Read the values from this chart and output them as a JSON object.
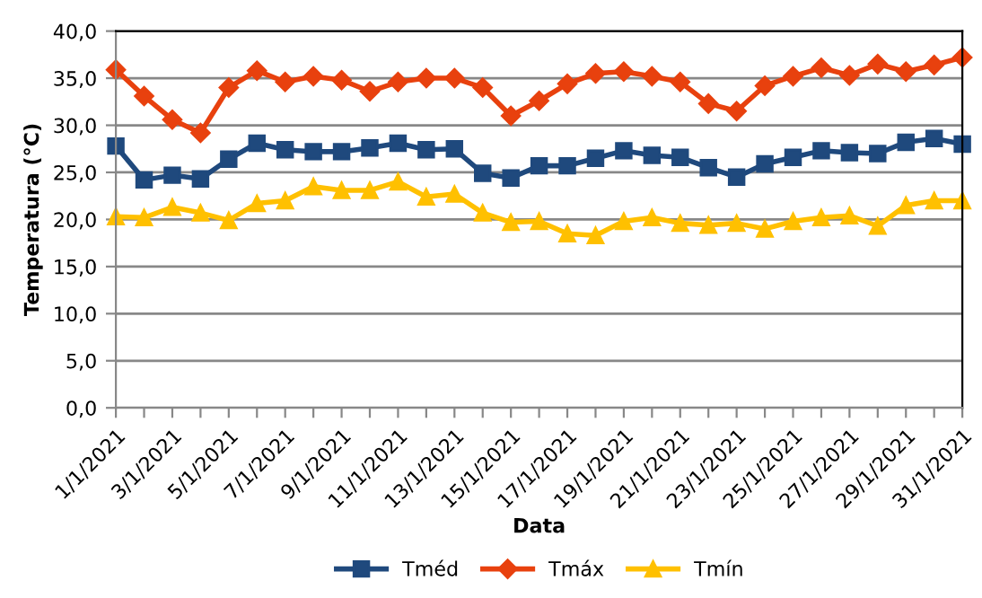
{
  "chart_data": {
    "type": "line",
    "xlabel": "Data",
    "ylabel": "Temperatura (°C)",
    "categories": [
      "1/1/2021",
      null,
      "3/1/2021",
      null,
      "5/1/2021",
      null,
      "7/1/2021",
      null,
      "9/1/2021",
      null,
      "11/1/2021",
      null,
      "13/1/2021",
      null,
      "15/1/2021",
      null,
      "17/1/2021",
      null,
      "19/1/2021",
      null,
      "21/1/2021",
      null,
      "23/1/2021",
      null,
      "25/1/2021",
      null,
      "27/1/2021",
      null,
      "29/1/2021",
      null,
      "31/1/2021"
    ],
    "series": [
      {
        "name": "Tméd",
        "color": "#1f497d",
        "marker": "square",
        "values": [
          27.8,
          24.2,
          24.7,
          24.3,
          26.4,
          28.1,
          27.4,
          27.2,
          27.2,
          27.6,
          28.1,
          27.4,
          27.5,
          24.9,
          24.4,
          25.7,
          25.7,
          26.5,
          27.3,
          26.8,
          26.6,
          25.5,
          24.5,
          25.9,
          26.6,
          27.3,
          27.1,
          27.0,
          28.2,
          28.6,
          28.0
        ]
      },
      {
        "name": "Tmáx",
        "color": "#e8410e",
        "marker": "diamond",
        "values": [
          35.9,
          33.1,
          30.6,
          29.2,
          34.0,
          35.8,
          34.6,
          35.2,
          34.8,
          33.6,
          34.6,
          35.0,
          35.0,
          34.0,
          31.0,
          32.6,
          34.4,
          35.5,
          35.7,
          35.2,
          34.6,
          32.3,
          31.5,
          34.2,
          35.2,
          36.1,
          35.3,
          36.5,
          35.7,
          36.4,
          37.2
        ]
      },
      {
        "name": "Tmín",
        "color": "#ffc000",
        "marker": "triangle",
        "values": [
          20.3,
          20.2,
          21.3,
          20.7,
          19.9,
          21.7,
          22.0,
          23.5,
          23.1,
          23.1,
          24.0,
          22.4,
          22.7,
          20.7,
          19.7,
          19.8,
          18.5,
          18.3,
          19.8,
          20.2,
          19.6,
          19.4,
          19.6,
          19.0,
          19.8,
          20.2,
          20.4,
          19.3,
          21.5,
          22.0,
          22.0
        ]
      }
    ],
    "ylim": [
      0,
      40
    ],
    "yticks": [
      {
        "value": 0,
        "label": "0,0"
      },
      {
        "value": 5,
        "label": "5,0"
      },
      {
        "value": 10,
        "label": "10,0"
      },
      {
        "value": 15,
        "label": "15,0"
      },
      {
        "value": 20,
        "label": "20,0"
      },
      {
        "value": 25,
        "label": "25,0"
      },
      {
        "value": 30,
        "label": "30,0"
      },
      {
        "value": 35,
        "label": "35,0"
      },
      {
        "value": 40,
        "label": "40,0"
      }
    ],
    "grid": "y",
    "legend": "bottom",
    "line_style": "solid"
  }
}
